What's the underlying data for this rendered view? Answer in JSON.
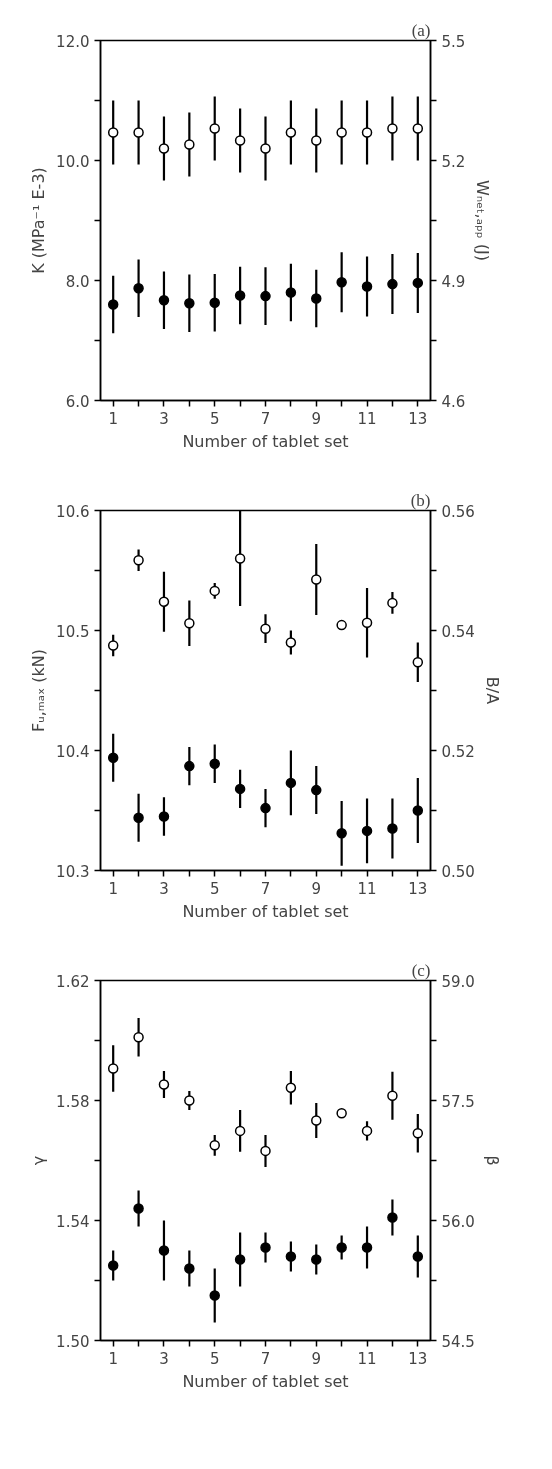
{
  "chart_data": [
    {
      "type": "scatter",
      "title": "(a)",
      "xlabel": "Number of tablet set",
      "ylabel": "K (MPa⁻¹ E-3)",
      "y2label": "Wₙₑₜ,ₐₚₚ (J)",
      "x": [
        1,
        2,
        3,
        4,
        5,
        6,
        7,
        8,
        9,
        10,
        11,
        12,
        13
      ],
      "xlim": [
        0.5,
        13.5
      ],
      "xticks": [
        1,
        {
          "value": 2,
          "label": null
        },
        3,
        {
          "value": 4,
          "label": null
        },
        5,
        {
          "value": 6,
          "label": null
        },
        7,
        {
          "value": 8,
          "label": null
        },
        9,
        {
          "value": 10,
          "label": null
        },
        11,
        {
          "value": 12,
          "label": null
        },
        13
      ],
      "ylim": [
        6,
        12
      ],
      "yticks": [
        {
          "value": 6,
          "label": "6.0"
        },
        {
          "value": 7,
          "label": null
        },
        {
          "value": 8,
          "label": "8.0"
        },
        {
          "value": 9,
          "label": null
        },
        {
          "value": 10,
          "label": "10.0"
        },
        {
          "value": 11,
          "label": null
        },
        {
          "value": 12,
          "label": "12.0"
        }
      ],
      "y2lim": [
        4.6,
        5.5
      ],
      "y2ticks": [
        4.6,
        {
          "value": 4.75,
          "label": null
        },
        4.9,
        {
          "value": 5.05,
          "label": null
        },
        5.2,
        {
          "value": 5.35,
          "label": null
        },
        5.5
      ],
      "marker": "circle",
      "grid": false,
      "series": [
        {
          "color": "#000000",
          "values": [
            7.6,
            7.87,
            7.67,
            7.62,
            7.63,
            7.75,
            7.74,
            7.8,
            7.7,
            7.97,
            7.9,
            7.94,
            7.96
          ],
          "errors": [
            0.48,
            0.48,
            0.48,
            0.48,
            0.48,
            0.48,
            0.48,
            0.48,
            0.48,
            0.5,
            0.5,
            0.5,
            0.5
          ]
        },
        {
          "color": "#000000",
          "axis": "y2",
          "values": [
            5.27,
            5.27,
            5.23,
            5.24,
            5.28,
            5.25,
            5.23,
            5.27,
            5.25,
            5.27,
            5.27,
            5.28,
            5.28
          ],
          "errors": [
            0.08,
            0.08,
            0.08,
            0.08,
            0.08,
            0.08,
            0.08,
            0.08,
            0.08,
            0.08,
            0.08,
            0.08,
            0.08
          ]
        }
      ]
    },
    {
      "type": "scatter",
      "title": "(b)",
      "xlabel": "Number of tablet set",
      "ylabel": "Fᵤ,ₘₐₓ (kN)",
      "y2label": "B/A",
      "x": [
        1,
        2,
        3,
        4,
        5,
        6,
        7,
        8,
        9,
        10,
        11,
        12,
        13
      ],
      "xlim": [
        0.5,
        13.5
      ],
      "xticks": [
        1,
        {
          "value": 2,
          "label": null
        },
        3,
        {
          "value": 4,
          "label": null
        },
        5,
        {
          "value": 6,
          "label": null
        },
        7,
        {
          "value": 8,
          "label": null
        },
        9,
        {
          "value": 10,
          "label": null
        },
        11,
        {
          "value": 12,
          "label": null
        },
        13
      ],
      "ylim": [
        10.3,
        10.6
      ],
      "yticks": [
        10.3,
        {
          "value": 10.35,
          "label": null
        },
        10.4,
        {
          "value": 10.45,
          "label": null
        },
        10.5,
        {
          "value": 10.55,
          "label": null
        },
        10.6
      ],
      "y2lim": [
        0.5,
        0.56
      ],
      "y2ticks": [
        {
          "value": 0.5,
          "label": "0.50"
        },
        {
          "value": 0.51,
          "label": null
        },
        0.52,
        {
          "value": 0.53,
          "label": null
        },
        0.54,
        {
          "value": 0.55,
          "label": null
        },
        0.56
      ],
      "marker": "circle",
      "grid": false,
      "series": [
        {
          "color": "#000000",
          "values": [
            10.394,
            10.344,
            10.345,
            10.387,
            10.389,
            10.368,
            10.352,
            10.373,
            10.367,
            10.331,
            10.333,
            10.335,
            10.35
          ],
          "errors": [
            0.02,
            0.02,
            0.016,
            0.016,
            0.016,
            0.016,
            0.016,
            0.027,
            0.02,
            0.027,
            0.027,
            0.025,
            0.027
          ]
        },
        {
          "color": "#000000",
          "axis": "y2",
          "values": [
            0.5375,
            0.5517,
            0.5448,
            0.5412,
            0.5466,
            0.552,
            0.5403,
            0.538,
            0.5485,
            0.5409,
            0.5413,
            0.5446,
            0.5347
          ],
          "errors": [
            0.0018,
            0.0018,
            0.005,
            0.0038,
            0.0013,
            0.0079,
            0.0024,
            0.002,
            0.0059,
            0.0007,
            0.0058,
            0.0018,
            0.0033
          ]
        }
      ]
    },
    {
      "type": "scatter",
      "title": "(c)",
      "xlabel": "Number of tablet set",
      "ylabel": "γ",
      "y2label": "β",
      "x": [
        1,
        2,
        3,
        4,
        5,
        6,
        7,
        8,
        9,
        10,
        11,
        12,
        13
      ],
      "xlim": [
        0.5,
        13.5
      ],
      "xticks": [
        1,
        {
          "value": 2,
          "label": null
        },
        3,
        {
          "value": 4,
          "label": null
        },
        5,
        {
          "value": 6,
          "label": null
        },
        7,
        {
          "value": 8,
          "label": null
        },
        9,
        {
          "value": 10,
          "label": null
        },
        11,
        {
          "value": 12,
          "label": null
        },
        13
      ],
      "ylim": [
        1.5,
        1.62
      ],
      "yticks": [
        {
          "value": 1.5,
          "label": "1.50"
        },
        {
          "value": 1.52,
          "label": null
        },
        1.54,
        {
          "value": 1.56,
          "label": null
        },
        1.58,
        {
          "value": 1.6,
          "label": null
        },
        1.62
      ],
      "y2lim": [
        54.5,
        59
      ],
      "y2ticks": [
        54.5,
        {
          "value": 55.25,
          "label": null
        },
        {
          "value": 56,
          "label": "56.0"
        },
        {
          "value": 56.75,
          "label": null
        },
        57.5,
        {
          "value": 58.25,
          "label": null
        },
        {
          "value": 59,
          "label": "59.0"
        }
      ],
      "marker": "circle",
      "grid": false,
      "series": [
        {
          "color": "#000000",
          "values": [
            1.525,
            1.544,
            1.53,
            1.524,
            1.515,
            1.527,
            1.531,
            1.528,
            1.527,
            1.531,
            1.531,
            1.541,
            1.528
          ],
          "errors": [
            0.005,
            0.006,
            0.01,
            0.006,
            0.009,
            0.009,
            0.005,
            0.005,
            0.005,
            0.004,
            0.007,
            0.006,
            0.007
          ]
        },
        {
          "color": "#000000",
          "axis": "y2",
          "values": [
            57.9,
            58.29,
            57.7,
            57.5,
            56.94,
            57.12,
            56.87,
            57.66,
            57.25,
            57.34,
            57.12,
            57.56,
            57.09
          ],
          "errors": [
            0.29,
            0.24,
            0.17,
            0.12,
            0.13,
            0.26,
            0.2,
            0.21,
            0.22,
            0.04,
            0.12,
            0.3,
            0.24
          ]
        }
      ]
    }
  ]
}
